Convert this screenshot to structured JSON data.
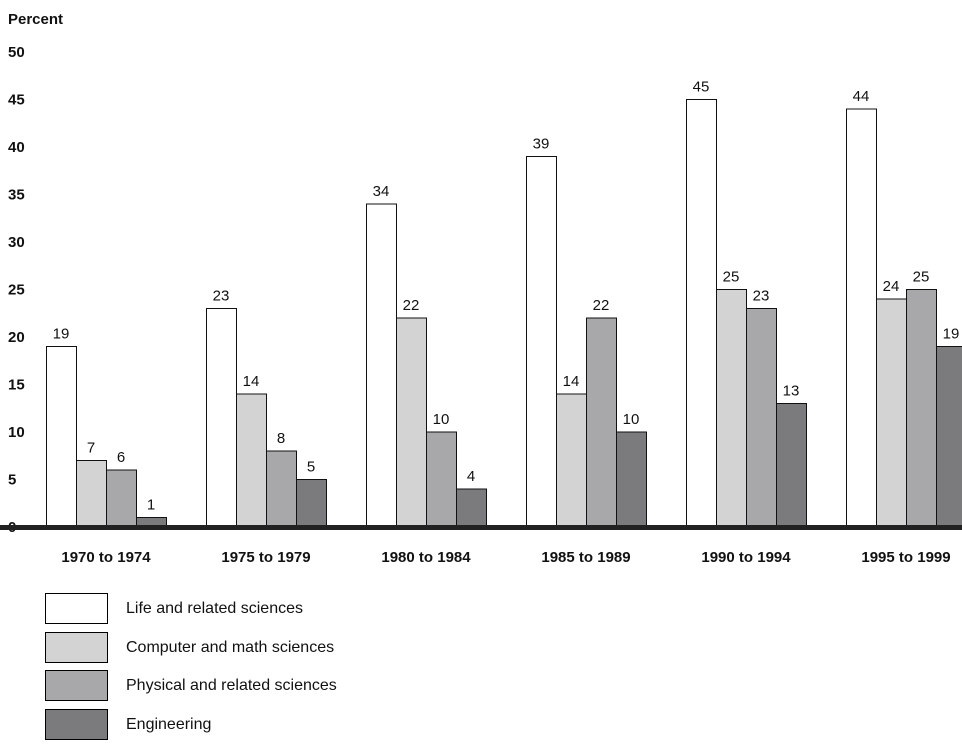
{
  "chart_data": {
    "type": "bar",
    "ylabel": "Percent",
    "ylim": [
      0,
      50
    ],
    "yticks": [
      0,
      5,
      10,
      15,
      20,
      25,
      30,
      35,
      40,
      45,
      50
    ],
    "categories": [
      "1970 to 1974",
      "1975 to 1979",
      "1980 to 1984",
      "1985 to 1989",
      "1990 to 1994",
      "1995 to 1999"
    ],
    "series": [
      {
        "name": "Life and related sciences",
        "color": "#ffffff",
        "values": [
          19,
          23,
          34,
          39,
          45,
          44
        ]
      },
      {
        "name": "Computer and math sciences",
        "color": "#d3d3d3",
        "values": [
          7,
          14,
          22,
          14,
          25,
          24
        ]
      },
      {
        "name": "Physical and related sciences",
        "color": "#a8a8aa",
        "values": [
          6,
          8,
          10,
          22,
          23,
          25
        ]
      },
      {
        "name": "Engineering",
        "color": "#7b7b7e",
        "values": [
          1,
          5,
          4,
          10,
          13,
          19
        ]
      }
    ],
    "legend_position": "bottom-left",
    "grid": false
  }
}
